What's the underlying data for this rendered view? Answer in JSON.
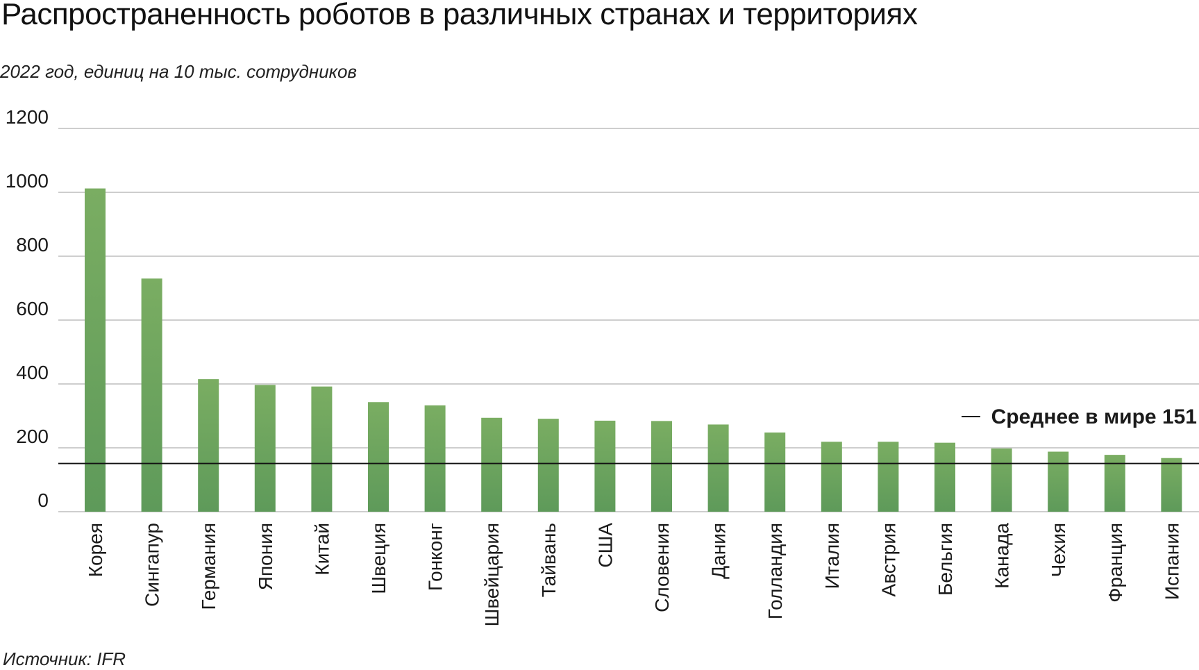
{
  "title": "Распространенность роботов в различных странах и территориях",
  "subtitle": "2022 год, единиц на 10 тыс. сотрудников",
  "source": "Источник: IFR",
  "colors": {
    "bar_top": "#7aad62",
    "bar_bottom": "#5e9a5a",
    "grid": "#b0b0b0",
    "average_line": "#111111"
  },
  "chart_data": {
    "type": "bar",
    "title": "Распространенность роботов в различных странах и территориях",
    "subtitle": "2022 год, единиц на 10 тыс. сотрудников",
    "xlabel": "",
    "ylabel": "",
    "ylim": [
      0,
      1200
    ],
    "yticks": [
      0,
      200,
      400,
      600,
      800,
      1000,
      1200
    ],
    "grid": true,
    "categories": [
      "Корея",
      "Сингапур",
      "Германия",
      "Япония",
      "Китай",
      "Швеция",
      "Гонконг",
      "Швейцария",
      "Тайвань",
      "США",
      "Словения",
      "Дания",
      "Голландия",
      "Италия",
      "Австрия",
      "Бельгия",
      "Канада",
      "Чехия",
      "Франция",
      "Испания"
    ],
    "values": [
      1012,
      730,
      415,
      397,
      392,
      343,
      333,
      294,
      291,
      285,
      284,
      273,
      248,
      219,
      219,
      216,
      198,
      188,
      178,
      168
    ],
    "average": {
      "label": "Среднее в мире 151",
      "value": 151
    }
  }
}
